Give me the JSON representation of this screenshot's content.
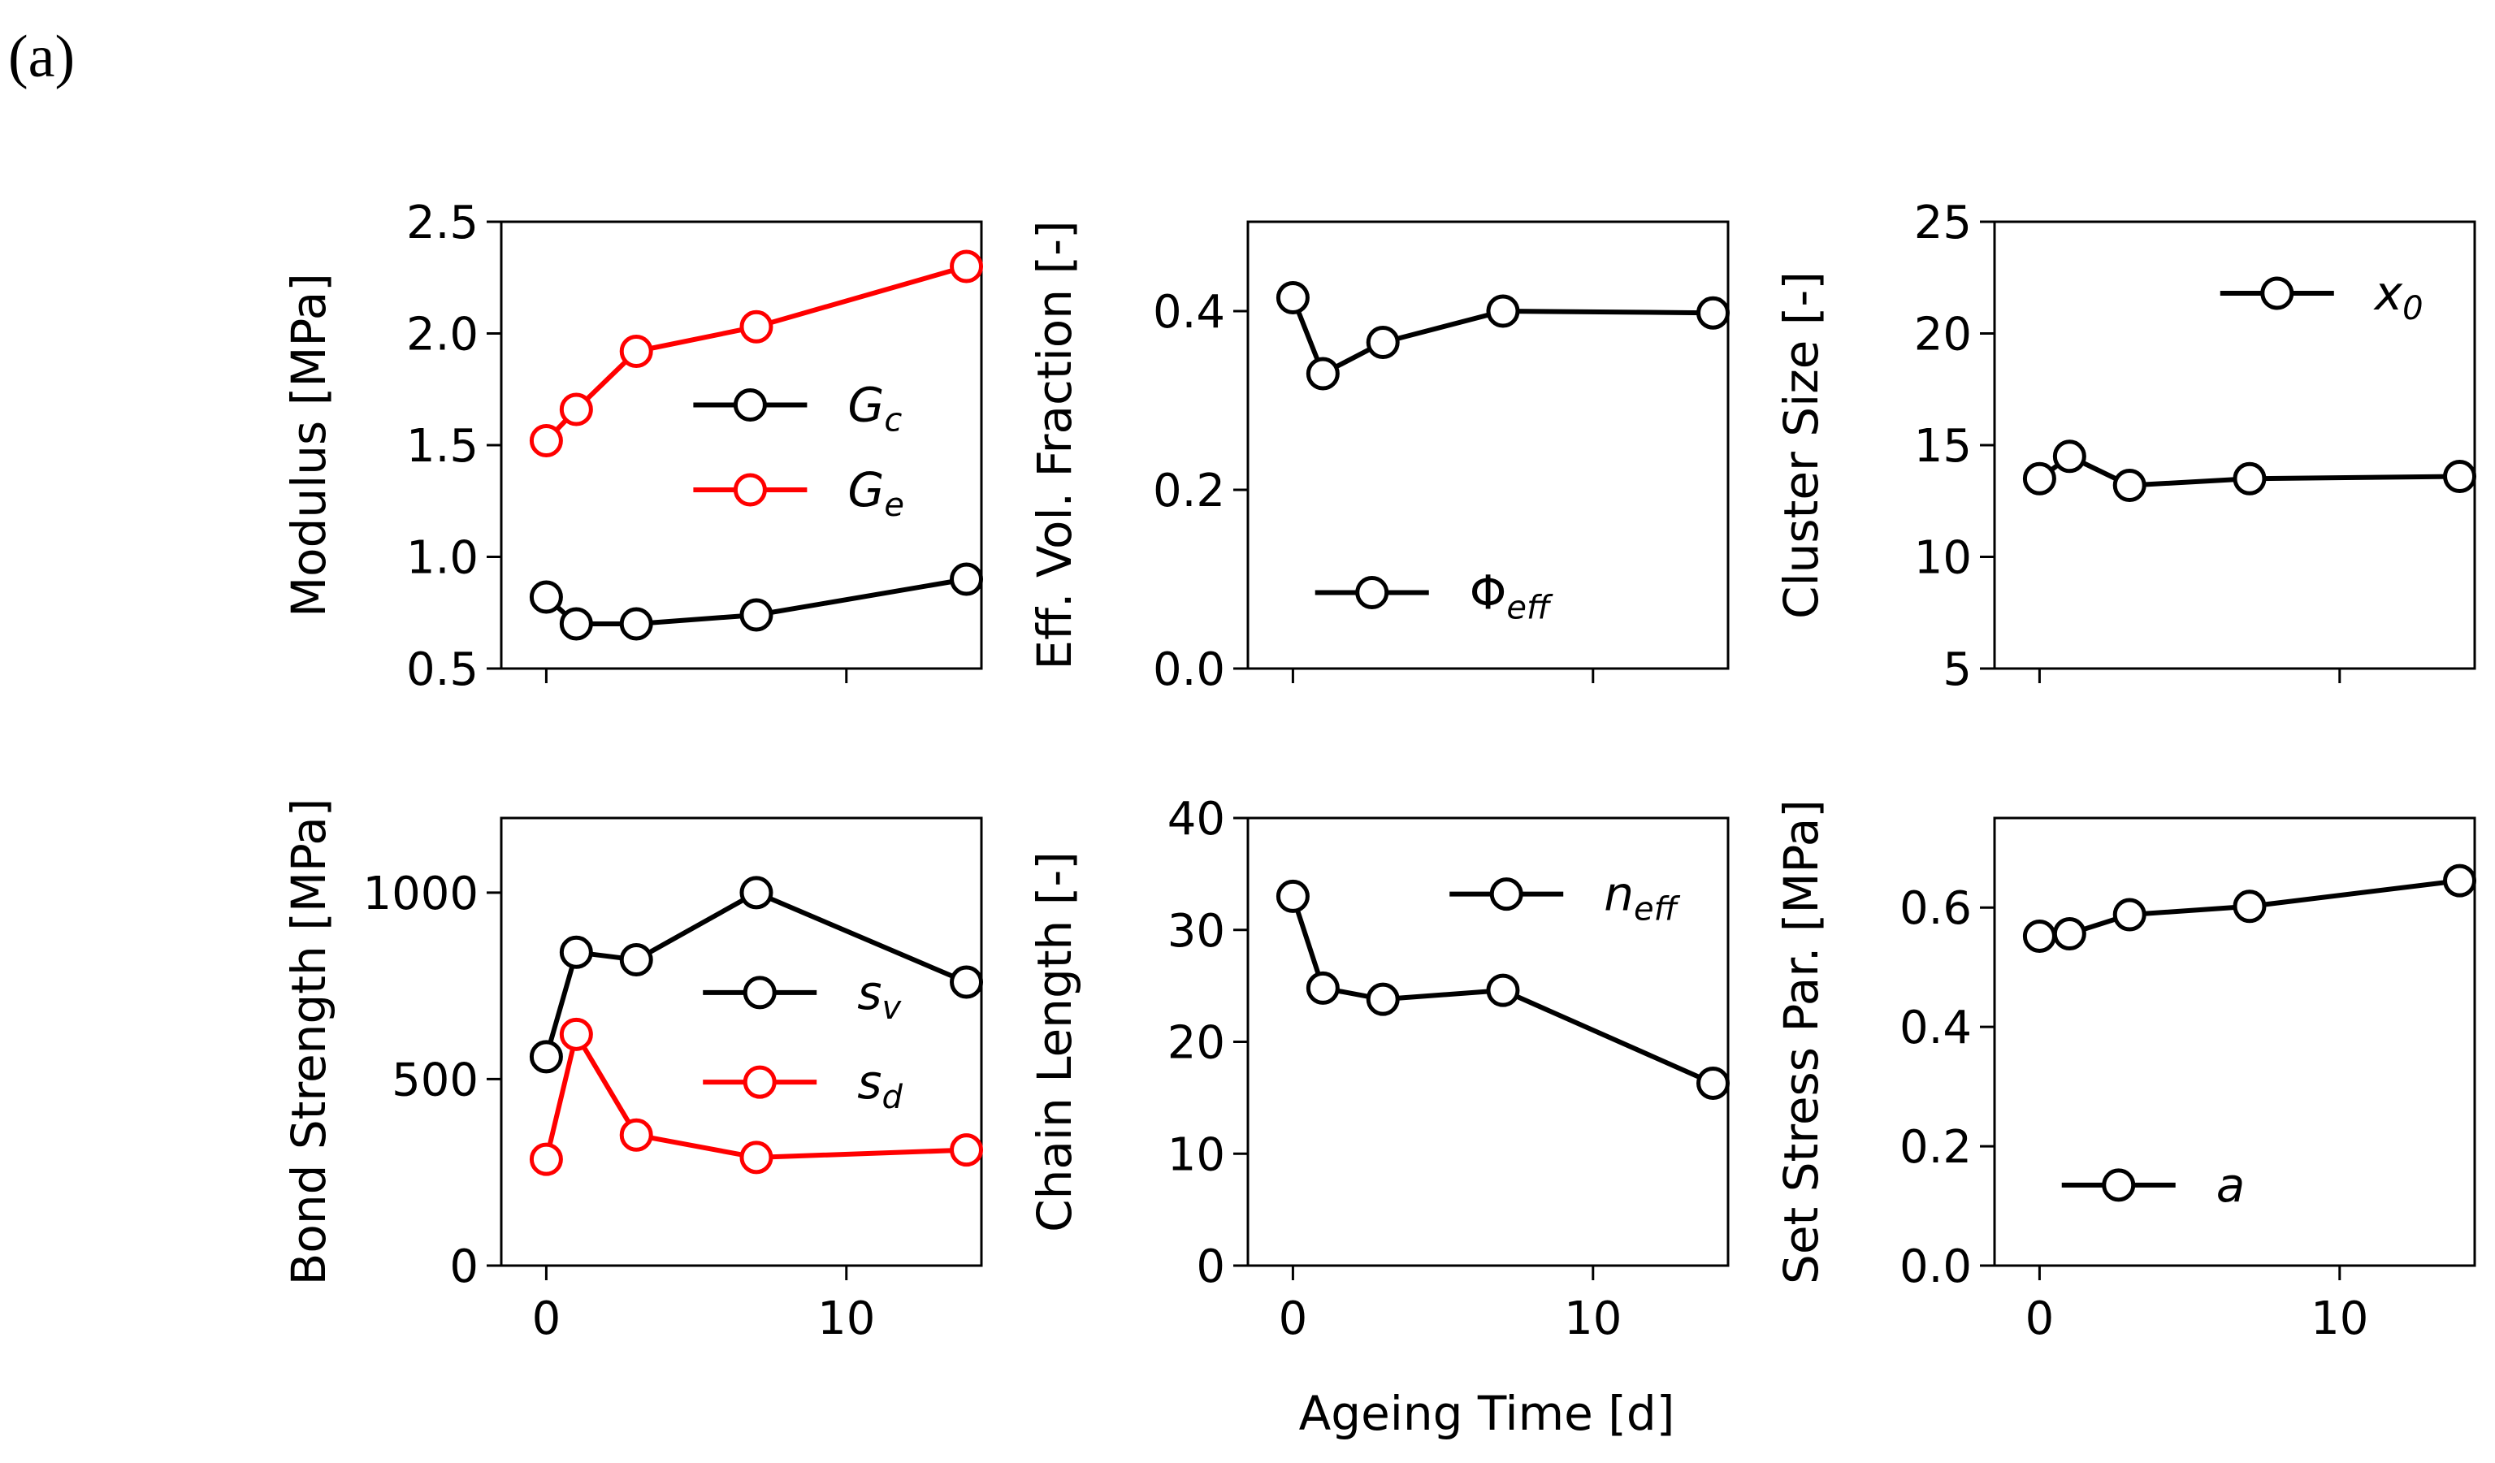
{
  "panel_label": "(a)",
  "shared_xlabel": "Ageing Time [d]",
  "colors": {
    "black": "#000000",
    "red": "#ff0000"
  },
  "chart_data": [
    {
      "type": "line",
      "ylabel": "Modulus [MPa]",
      "xlim": [
        -1.5,
        14.5
      ],
      "ylim": [
        0.5,
        2.5
      ],
      "xticks": [
        0,
        10
      ],
      "yticks": [
        0.5,
        1.0,
        1.5,
        2.0,
        2.5
      ],
      "ytick_labels": [
        "0.5",
        "1.0",
        "1.5",
        "2.0",
        "2.5"
      ],
      "show_xtick_labels": false,
      "legend_position": "center-right",
      "series": [
        {
          "name": "G",
          "sub": "c",
          "color": "black",
          "x": [
            0,
            1,
            3,
            7,
            14
          ],
          "y": [
            0.82,
            0.7,
            0.7,
            0.74,
            0.9
          ]
        },
        {
          "name": "G",
          "sub": "e",
          "color": "red",
          "x": [
            0,
            1,
            3,
            7,
            14
          ],
          "y": [
            1.52,
            1.66,
            1.92,
            2.03,
            2.3
          ]
        }
      ]
    },
    {
      "type": "line",
      "ylabel": "Eff. Vol. Fraction [-]",
      "xlim": [
        -1.5,
        14.5
      ],
      "ylim": [
        0.0,
        0.5
      ],
      "xticks": [
        0,
        10
      ],
      "yticks": [
        0.0,
        0.2,
        0.4
      ],
      "ytick_labels": [
        "0.0",
        "0.2",
        "0.4"
      ],
      "show_xtick_labels": false,
      "legend_position": "lower-left",
      "series": [
        {
          "name": "Φ",
          "sub": "eff",
          "color": "black",
          "x": [
            0,
            1,
            3,
            7,
            14
          ],
          "y": [
            0.415,
            0.33,
            0.365,
            0.4,
            0.398
          ]
        }
      ]
    },
    {
      "type": "line",
      "ylabel": "Cluster Size [-]",
      "xlim": [
        -1.5,
        14.5
      ],
      "ylim": [
        5,
        25
      ],
      "xticks": [
        0,
        10
      ],
      "yticks": [
        5,
        10,
        15,
        20,
        25
      ],
      "ytick_labels": [
        "5",
        "10",
        "15",
        "20",
        "25"
      ],
      "show_xtick_labels": false,
      "legend_position": "upper-right",
      "series": [
        {
          "name": "x",
          "sub": "0",
          "color": "black",
          "x": [
            0,
            1,
            3,
            7,
            14
          ],
          "y": [
            13.5,
            14.5,
            13.2,
            13.5,
            13.6
          ]
        }
      ]
    },
    {
      "type": "line",
      "ylabel": "Bond Strength [MPa]",
      "xlim": [
        -1.5,
        14.5
      ],
      "ylim": [
        0,
        1200
      ],
      "xticks": [
        0,
        10
      ],
      "yticks": [
        0,
        500,
        1000
      ],
      "ytick_labels": [
        "0",
        "500",
        "1000"
      ],
      "xtick_labels": [
        "0",
        "10"
      ],
      "show_xtick_labels": true,
      "legend_position": "center-right",
      "series": [
        {
          "name": "s",
          "sub": "v",
          "color": "black",
          "x": [
            0,
            1,
            3,
            7,
            14
          ],
          "y": [
            560,
            840,
            820,
            1000,
            760
          ]
        },
        {
          "name": "s",
          "sub": "d",
          "color": "red",
          "x": [
            0,
            1,
            3,
            7,
            14
          ],
          "y": [
            285,
            620,
            350,
            290,
            310
          ]
        }
      ]
    },
    {
      "type": "line",
      "ylabel": "Chain Length [-]",
      "xlim": [
        -1.5,
        14.5
      ],
      "ylim": [
        0,
        40
      ],
      "xticks": [
        0,
        10
      ],
      "yticks": [
        0,
        10,
        20,
        30,
        40
      ],
      "ytick_labels": [
        "0",
        "10",
        "20",
        "30",
        "40"
      ],
      "xtick_labels": [
        "0",
        "10"
      ],
      "show_xtick_labels": true,
      "legend_position": "upper-right",
      "series": [
        {
          "name": "n",
          "sub": "eff",
          "color": "black",
          "x": [
            0,
            1,
            3,
            7,
            14
          ],
          "y": [
            33.0,
            24.8,
            23.8,
            24.6,
            16.3
          ]
        }
      ]
    },
    {
      "type": "line",
      "ylabel": "Set Stress Par. [MPa]",
      "xlim": [
        -1.5,
        14.5
      ],
      "ylim": [
        0.0,
        0.75
      ],
      "xticks": [
        0,
        10
      ],
      "yticks": [
        0.0,
        0.2,
        0.4,
        0.6
      ],
      "ytick_labels": [
        "0.0",
        "0.2",
        "0.4",
        "0.6"
      ],
      "xtick_labels": [
        "0",
        "10"
      ],
      "show_xtick_labels": true,
      "legend_position": "lower-left",
      "series": [
        {
          "name": "a",
          "sub": "",
          "color": "black",
          "x": [
            0,
            1,
            3,
            7,
            14
          ],
          "y": [
            0.552,
            0.556,
            0.588,
            0.602,
            0.645
          ]
        }
      ]
    }
  ]
}
